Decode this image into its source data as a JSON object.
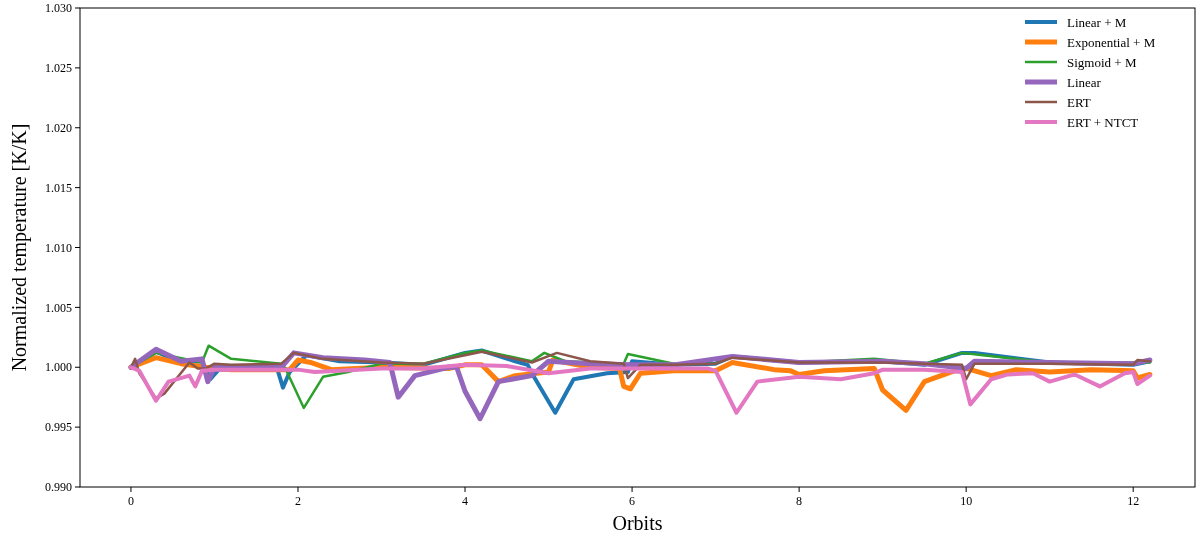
{
  "chart_data": {
    "type": "line",
    "xlabel": "Orbits",
    "ylabel": "Normalized temperature [K/K]",
    "xlim": [
      -0.61,
      12.74
    ],
    "xticks": [
      0,
      2,
      4,
      6,
      8,
      10,
      12
    ],
    "ylim": [
      0.99,
      1.03
    ],
    "yticks": [
      {
        "value": 0.99,
        "label": "0.990"
      },
      {
        "value": 0.995,
        "label": "0.995"
      },
      {
        "value": 1.0,
        "label": "1.000"
      },
      {
        "value": 1.005,
        "label": "1.005"
      },
      {
        "value": 1.01,
        "label": "1.010"
      },
      {
        "value": 1.015,
        "label": "1.015"
      },
      {
        "value": 1.02,
        "label": "1.020"
      },
      {
        "value": 1.025,
        "label": "1.025"
      },
      {
        "value": 1.03,
        "label": "1.030"
      }
    ],
    "grid": false,
    "legend": "top right",
    "marker": "none",
    "line_style": "solid",
    "series": [
      {
        "name": "Linear + M",
        "color": "#1f77b4",
        "x": [
          0,
          0.3,
          0.6,
          0.85,
          0.95,
          1.05,
          1.5,
          1.75,
          1.82,
          1.9,
          2.1,
          2.5,
          3,
          3.5,
          4,
          4.2,
          4.6,
          4.75,
          4.8,
          5.08,
          5.3,
          5.7,
          5.95,
          6.0,
          6.5,
          7,
          7.2,
          8,
          9,
          9.5,
          9.95,
          10.1,
          11,
          12,
          12.2
        ],
        "values": [
          1.0,
          1.0013,
          1.0004,
          1.0005,
          0.999,
          0.9998,
          0.9999,
          0.9999,
          0.9983,
          0.9996,
          1.001,
          1.0005,
          1.0004,
          1.0002,
          1.0012,
          1.0014,
          1.0005,
          1.0002,
          0.9995,
          0.9962,
          0.999,
          0.9995,
          0.9996,
          1.0005,
          1.0002,
          1.0003,
          1.0009,
          1.0004,
          1.0005,
          1.0002,
          1.0012,
          1.0012,
          1.0004,
          1.0002,
          1.0005
        ]
      },
      {
        "name": "Exponential + M",
        "color": "#ff7f0e",
        "x": [
          0,
          0.3,
          0.6,
          0.9,
          1.2,
          1.9,
          2.0,
          2.15,
          2.4,
          3,
          3.8,
          4.0,
          4.2,
          4.4,
          4.6,
          5,
          5.05,
          5.5,
          5.85,
          5.9,
          5.98,
          6.1,
          6.5,
          7.0,
          7.2,
          7.7,
          7.9,
          8,
          8.3,
          8.9,
          9.0,
          9.28,
          9.5,
          9.9,
          10.0,
          10.3,
          10.6,
          11,
          11.5,
          12,
          12.05,
          12.2
        ],
        "values": [
          1.0,
          1.0008,
          1.0003,
          1.0,
          0.9998,
          0.9998,
          1.0006,
          1.0004,
          0.9998,
          1.0,
          0.9999,
          1.0002,
          1.0002,
          0.9988,
          0.9993,
          0.9996,
          1.0006,
          1.0,
          0.9999,
          0.9984,
          0.9982,
          0.9995,
          0.9997,
          0.9997,
          1.0004,
          0.9998,
          0.9997,
          0.9994,
          0.9997,
          0.9999,
          0.9981,
          0.9964,
          0.9988,
          0.9998,
          0.9999,
          0.9993,
          0.9998,
          0.9996,
          0.9998,
          0.9997,
          0.9991,
          0.9994
        ]
      },
      {
        "name": "Sigmoid + M",
        "color": "#2ca02c",
        "x": [
          0,
          0.3,
          0.85,
          0.93,
          1.2,
          1.8,
          1.85,
          2.07,
          2.3,
          2.6,
          3,
          3.5,
          4,
          4.2,
          4.8,
          4.95,
          5.2,
          5.9,
          5.95,
          6.5,
          7,
          7.2,
          8,
          8.9,
          9.5,
          9.95,
          10.2,
          11,
          12.2
        ],
        "values": [
          1.0,
          1.0012,
          1.0004,
          1.0018,
          1.0007,
          1.0003,
          0.9999,
          0.9966,
          0.9992,
          0.9996,
          1.0003,
          1.0003,
          1.0012,
          1.0014,
          1.0005,
          1.0012,
          1.0005,
          1.0003,
          1.0011,
          1.0003,
          1.0003,
          1.0009,
          1.0004,
          1.0007,
          1.0003,
          1.0012,
          1.001,
          1.0004,
          1.0004
        ]
      },
      {
        "name": "Linear",
        "color": "#9467bd",
        "x": [
          0,
          0.3,
          0.6,
          0.85,
          0.92,
          1.0,
          1.8,
          1.95,
          2.3,
          2.8,
          3.1,
          3.2,
          3.4,
          3.8,
          3.9,
          4.0,
          4.18,
          4.4,
          4.8,
          5.0,
          5.5,
          6,
          6.5,
          7.2,
          8,
          9,
          9.5,
          10,
          10.1,
          11,
          12,
          12.2
        ],
        "values": [
          1.0,
          1.0015,
          1.0005,
          1.0007,
          0.9988,
          1.0,
          1.0,
          1.0012,
          1.0008,
          1.0006,
          1.0004,
          0.9975,
          0.9993,
          1.0,
          1.0,
          0.998,
          0.9957,
          0.9988,
          0.9993,
          1.0005,
          1.0003,
          1.0002,
          1.0002,
          1.0009,
          1.0004,
          1.0005,
          1.0003,
          0.9999,
          1.0005,
          1.0004,
          1.0003,
          1.0006
        ]
      },
      {
        "name": "ERT",
        "color": "#8c564b",
        "x": [
          0,
          0.05,
          0.1,
          0.3,
          0.4,
          0.7,
          0.8,
          0.9,
          1.0,
          1.2,
          1.8,
          1.95,
          2.3,
          3,
          3.5,
          4,
          4.2,
          4.8,
          5.1,
          5.5,
          5.9,
          5.95,
          6.1,
          6.5,
          7,
          7.2,
          8,
          9,
          9.5,
          9.95,
          10.0,
          10.1,
          11,
          12,
          12.05,
          12.2
        ],
        "values": [
          1.0,
          1.0007,
          0.9995,
          0.9974,
          0.9978,
          1.0004,
          0.9999,
          0.9999,
          1.0003,
          1.0002,
          1.0003,
          1.0012,
          1.0007,
          1.0004,
          1.0003,
          1.001,
          1.0013,
          1.0004,
          1.0012,
          1.0005,
          1.0003,
          0.9991,
          1.0002,
          1.0002,
          1.0003,
          1.0008,
          1.0004,
          1.0004,
          1.0003,
          1.0002,
          0.999,
          1.0003,
          1.0003,
          1.0002,
          1.0006,
          1.0005
        ]
      },
      {
        "name": "ERT + NTCT",
        "color": "#e377c2",
        "x": [
          0,
          0.1,
          0.3,
          0.45,
          0.7,
          0.77,
          0.85,
          1.0,
          2,
          2.2,
          3,
          3.5,
          4,
          4.5,
          5,
          5.5,
          6,
          6.9,
          7.0,
          7.25,
          7.5,
          8,
          8.5,
          8.9,
          9,
          9.5,
          9.95,
          10.05,
          10.3,
          10.5,
          10.8,
          11.0,
          11.3,
          11.6,
          11.9,
          12.0,
          12.05,
          12.2
        ],
        "values": [
          1.0,
          0.9997,
          0.9972,
          0.9988,
          0.9993,
          0.9984,
          0.9997,
          0.9998,
          0.9998,
          0.9996,
          0.9999,
          0.9999,
          1.0002,
          1.0001,
          0.9995,
          0.9999,
          0.9999,
          0.9999,
          0.9997,
          0.9962,
          0.9988,
          0.9992,
          0.999,
          0.9995,
          0.9998,
          0.9998,
          0.9996,
          0.9969,
          0.999,
          0.9994,
          0.9995,
          0.9988,
          0.9994,
          0.9984,
          0.9995,
          0.9996,
          0.9986,
          0.9993
        ]
      }
    ]
  }
}
